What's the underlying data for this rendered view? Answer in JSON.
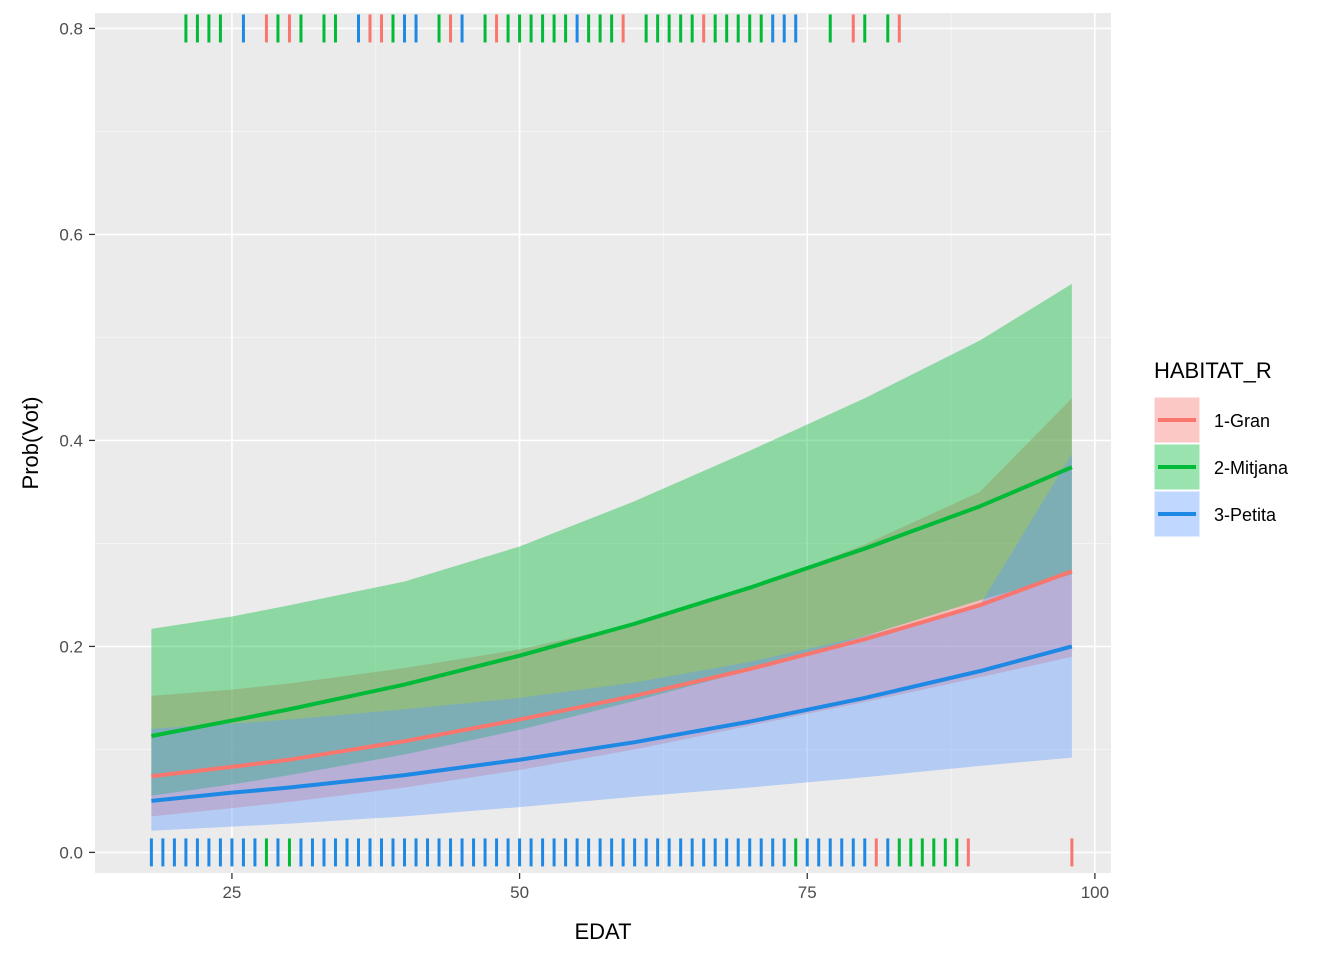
{
  "chart_data": {
    "type": "line",
    "xlabel": "EDAT",
    "ylabel": "Prob(Vot)",
    "xlim": [
      13.1,
      101.4
    ],
    "ylim": [
      -0.02,
      0.815
    ],
    "x_ticks": [
      25,
      50,
      75,
      100
    ],
    "x_tick_labels": [
      "25",
      "50",
      "75",
      "100"
    ],
    "y_ticks": [
      0.0,
      0.2,
      0.4,
      0.6,
      0.8
    ],
    "y_tick_labels": [
      "0.0",
      "0.2",
      "0.4",
      "0.6",
      "0.8"
    ],
    "legend": {
      "title": "HABITAT_R",
      "position": "right",
      "entries": [
        {
          "label": "1-Gran",
          "color": "#F8766D"
        },
        {
          "label": "2-Mitjana",
          "color": "#00BA38"
        },
        {
          "label": "3-Petita",
          "color": "#619CFF"
        }
      ]
    },
    "series": [
      {
        "name": "1-Gran",
        "line_color": "#F8766D",
        "band_color": "#F8766D",
        "x": [
          18,
          25,
          30,
          40,
          50,
          60,
          70,
          80,
          90,
          98
        ],
        "y": [
          0.074,
          0.083,
          0.09,
          0.108,
          0.129,
          0.152,
          0.178,
          0.207,
          0.24,
          0.273
        ],
        "lower": [
          0.035,
          0.043,
          0.049,
          0.063,
          0.08,
          0.1,
          0.123,
          0.146,
          0.17,
          0.19
        ],
        "upper": [
          0.152,
          0.158,
          0.164,
          0.179,
          0.197,
          0.222,
          0.256,
          0.299,
          0.35,
          0.441
        ]
      },
      {
        "name": "2-Mitjana",
        "line_color": "#00BA38",
        "band_color": "#00BA38",
        "x": [
          18,
          25,
          30,
          40,
          50,
          60,
          70,
          80,
          90,
          98
        ],
        "y": [
          0.113,
          0.128,
          0.139,
          0.163,
          0.191,
          0.222,
          0.257,
          0.295,
          0.336,
          0.374
        ],
        "lower": [
          0.055,
          0.066,
          0.075,
          0.095,
          0.119,
          0.147,
          0.177,
          0.21,
          0.245,
          0.27
        ],
        "upper": [
          0.217,
          0.229,
          0.24,
          0.263,
          0.297,
          0.341,
          0.39,
          0.441,
          0.497,
          0.552
        ]
      },
      {
        "name": "3-Petita",
        "line_color": "#1E88E5",
        "band_color": "#619CFF",
        "x": [
          18,
          25,
          30,
          40,
          50,
          60,
          70,
          80,
          90,
          98
        ],
        "y": [
          0.05,
          0.058,
          0.063,
          0.075,
          0.09,
          0.107,
          0.127,
          0.15,
          0.176,
          0.2
        ],
        "lower": [
          0.021,
          0.025,
          0.028,
          0.035,
          0.044,
          0.054,
          0.063,
          0.073,
          0.084,
          0.092
        ],
        "upper": [
          0.12,
          0.125,
          0.129,
          0.139,
          0.15,
          0.165,
          0.185,
          0.21,
          0.24,
          0.387
        ]
      }
    ],
    "rug_top": {
      "y_value": 0.8,
      "marks": [
        {
          "x": 21,
          "group": "2-Mitjana"
        },
        {
          "x": 22,
          "group": "2-Mitjana"
        },
        {
          "x": 23,
          "group": "2-Mitjana"
        },
        {
          "x": 24,
          "group": "2-Mitjana"
        },
        {
          "x": 26,
          "group": "3-Petita"
        },
        {
          "x": 28,
          "group": "1-Gran"
        },
        {
          "x": 29,
          "group": "2-Mitjana"
        },
        {
          "x": 30,
          "group": "1-Gran"
        },
        {
          "x": 31,
          "group": "2-Mitjana"
        },
        {
          "x": 33,
          "group": "2-Mitjana"
        },
        {
          "x": 34,
          "group": "2-Mitjana"
        },
        {
          "x": 36,
          "group": "3-Petita"
        },
        {
          "x": 37,
          "group": "1-Gran"
        },
        {
          "x": 38,
          "group": "1-Gran"
        },
        {
          "x": 39,
          "group": "2-Mitjana"
        },
        {
          "x": 40,
          "group": "3-Petita"
        },
        {
          "x": 41,
          "group": "3-Petita"
        },
        {
          "x": 43,
          "group": "2-Mitjana"
        },
        {
          "x": 44,
          "group": "1-Gran"
        },
        {
          "x": 45,
          "group": "3-Petita"
        },
        {
          "x": 47,
          "group": "2-Mitjana"
        },
        {
          "x": 48,
          "group": "1-Gran"
        },
        {
          "x": 49,
          "group": "2-Mitjana"
        },
        {
          "x": 50,
          "group": "2-Mitjana"
        },
        {
          "x": 51,
          "group": "2-Mitjana"
        },
        {
          "x": 52,
          "group": "2-Mitjana"
        },
        {
          "x": 53,
          "group": "2-Mitjana"
        },
        {
          "x": 54,
          "group": "2-Mitjana"
        },
        {
          "x": 55,
          "group": "3-Petita"
        },
        {
          "x": 56,
          "group": "2-Mitjana"
        },
        {
          "x": 57,
          "group": "2-Mitjana"
        },
        {
          "x": 58,
          "group": "2-Mitjana"
        },
        {
          "x": 59,
          "group": "1-Gran"
        },
        {
          "x": 61,
          "group": "2-Mitjana"
        },
        {
          "x": 62,
          "group": "2-Mitjana"
        },
        {
          "x": 63,
          "group": "2-Mitjana"
        },
        {
          "x": 64,
          "group": "2-Mitjana"
        },
        {
          "x": 65,
          "group": "2-Mitjana"
        },
        {
          "x": 66,
          "group": "1-Gran"
        },
        {
          "x": 67,
          "group": "2-Mitjana"
        },
        {
          "x": 68,
          "group": "2-Mitjana"
        },
        {
          "x": 69,
          "group": "2-Mitjana"
        },
        {
          "x": 70,
          "group": "2-Mitjana"
        },
        {
          "x": 71,
          "group": "2-Mitjana"
        },
        {
          "x": 72,
          "group": "3-Petita"
        },
        {
          "x": 73,
          "group": "3-Petita"
        },
        {
          "x": 74,
          "group": "3-Petita"
        },
        {
          "x": 77,
          "group": "2-Mitjana"
        },
        {
          "x": 79,
          "group": "1-Gran"
        },
        {
          "x": 80,
          "group": "2-Mitjana"
        },
        {
          "x": 82,
          "group": "2-Mitjana"
        },
        {
          "x": 83,
          "group": "1-Gran"
        }
      ]
    },
    "rug_bottom": {
      "y_value": 0.0,
      "marks": [
        {
          "x": 18,
          "group": "3-Petita"
        },
        {
          "x": 19,
          "group": "3-Petita"
        },
        {
          "x": 20,
          "group": "3-Petita"
        },
        {
          "x": 21,
          "group": "3-Petita"
        },
        {
          "x": 22,
          "group": "3-Petita"
        },
        {
          "x": 23,
          "group": "3-Petita"
        },
        {
          "x": 24,
          "group": "3-Petita"
        },
        {
          "x": 25,
          "group": "3-Petita"
        },
        {
          "x": 26,
          "group": "3-Petita"
        },
        {
          "x": 27,
          "group": "3-Petita"
        },
        {
          "x": 28,
          "group": "2-Mitjana"
        },
        {
          "x": 29,
          "group": "3-Petita"
        },
        {
          "x": 30,
          "group": "2-Mitjana"
        },
        {
          "x": 31,
          "group": "3-Petita"
        },
        {
          "x": 32,
          "group": "3-Petita"
        },
        {
          "x": 33,
          "group": "3-Petita"
        },
        {
          "x": 34,
          "group": "3-Petita"
        },
        {
          "x": 35,
          "group": "3-Petita"
        },
        {
          "x": 36,
          "group": "3-Petita"
        },
        {
          "x": 37,
          "group": "3-Petita"
        },
        {
          "x": 38,
          "group": "3-Petita"
        },
        {
          "x": 39,
          "group": "3-Petita"
        },
        {
          "x": 40,
          "group": "3-Petita"
        },
        {
          "x": 41,
          "group": "3-Petita"
        },
        {
          "x": 42,
          "group": "3-Petita"
        },
        {
          "x": 43,
          "group": "3-Petita"
        },
        {
          "x": 44,
          "group": "3-Petita"
        },
        {
          "x": 45,
          "group": "3-Petita"
        },
        {
          "x": 46,
          "group": "3-Petita"
        },
        {
          "x": 47,
          "group": "3-Petita"
        },
        {
          "x": 48,
          "group": "3-Petita"
        },
        {
          "x": 49,
          "group": "3-Petita"
        },
        {
          "x": 50,
          "group": "3-Petita"
        },
        {
          "x": 51,
          "group": "3-Petita"
        },
        {
          "x": 52,
          "group": "3-Petita"
        },
        {
          "x": 53,
          "group": "3-Petita"
        },
        {
          "x": 54,
          "group": "3-Petita"
        },
        {
          "x": 55,
          "group": "3-Petita"
        },
        {
          "x": 56,
          "group": "3-Petita"
        },
        {
          "x": 57,
          "group": "3-Petita"
        },
        {
          "x": 58,
          "group": "3-Petita"
        },
        {
          "x": 59,
          "group": "3-Petita"
        },
        {
          "x": 60,
          "group": "3-Petita"
        },
        {
          "x": 61,
          "group": "3-Petita"
        },
        {
          "x": 62,
          "group": "3-Petita"
        },
        {
          "x": 63,
          "group": "3-Petita"
        },
        {
          "x": 64,
          "group": "3-Petita"
        },
        {
          "x": 65,
          "group": "3-Petita"
        },
        {
          "x": 66,
          "group": "3-Petita"
        },
        {
          "x": 67,
          "group": "3-Petita"
        },
        {
          "x": 68,
          "group": "3-Petita"
        },
        {
          "x": 69,
          "group": "3-Petita"
        },
        {
          "x": 70,
          "group": "3-Petita"
        },
        {
          "x": 71,
          "group": "3-Petita"
        },
        {
          "x": 72,
          "group": "3-Petita"
        },
        {
          "x": 73,
          "group": "3-Petita"
        },
        {
          "x": 74,
          "group": "2-Mitjana"
        },
        {
          "x": 75,
          "group": "3-Petita"
        },
        {
          "x": 76,
          "group": "3-Petita"
        },
        {
          "x": 77,
          "group": "3-Petita"
        },
        {
          "x": 78,
          "group": "3-Petita"
        },
        {
          "x": 79,
          "group": "3-Petita"
        },
        {
          "x": 80,
          "group": "3-Petita"
        },
        {
          "x": 81,
          "group": "1-Gran"
        },
        {
          "x": 82,
          "group": "3-Petita"
        },
        {
          "x": 83,
          "group": "2-Mitjana"
        },
        {
          "x": 84,
          "group": "2-Mitjana"
        },
        {
          "x": 85,
          "group": "2-Mitjana"
        },
        {
          "x": 86,
          "group": "2-Mitjana"
        },
        {
          "x": 87,
          "group": "2-Mitjana"
        },
        {
          "x": 88,
          "group": "2-Mitjana"
        },
        {
          "x": 89,
          "group": "1-Gran"
        },
        {
          "x": 98,
          "group": "1-Gran"
        }
      ]
    },
    "colors": {
      "panel_background": "#EBEBEB",
      "grid_major": "#FFFFFF",
      "rug_1_gran": "#F8766D",
      "rug_2_mitjana": "#00BA38",
      "rug_3_petita": "#1E88E5"
    }
  }
}
